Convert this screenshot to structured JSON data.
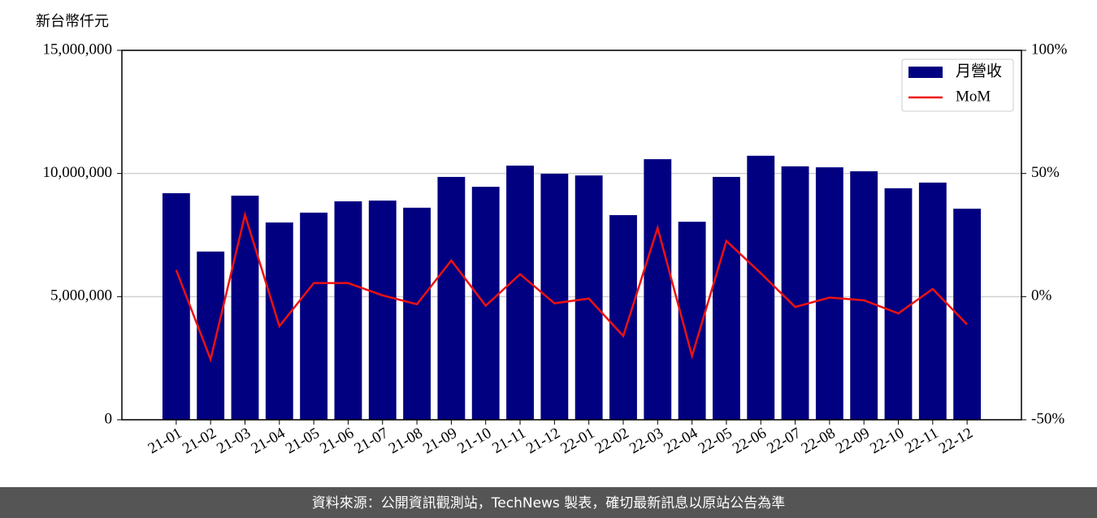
{
  "chart_data": {
    "type": "bar",
    "y_label": "新台幣仟元",
    "categories": [
      "21-01",
      "21-02",
      "21-03",
      "21-04",
      "21-05",
      "21-06",
      "21-07",
      "21-08",
      "21-09",
      "21-10",
      "21-11",
      "21-12",
      "22-01",
      "22-02",
      "22-03",
      "22-04",
      "22-05",
      "22-06",
      "22-07",
      "22-08",
      "22-09",
      "22-10",
      "22-11",
      "22-12"
    ],
    "series": [
      {
        "name": "月營收",
        "type": "bar",
        "color": "#000080",
        "values": [
          9200000,
          6830000,
          9100000,
          8010000,
          8410000,
          8870000,
          8900000,
          8610000,
          9860000,
          9460000,
          10320000,
          9990000,
          9920000,
          8310000,
          10580000,
          8040000,
          9860000,
          10720000,
          10290000,
          10250000,
          10090000,
          9400000,
          9630000,
          8570000
        ]
      },
      {
        "name": "MoM",
        "type": "line",
        "axis": "y2",
        "color": "#ee1111",
        "values": [
          10.8,
          -25.5,
          33.2,
          -12,
          5.5,
          5.5,
          0.5,
          -3.1,
          14.7,
          -3.7,
          9.1,
          -2.7,
          -0.8,
          -16,
          27.9,
          -24.1,
          22.6,
          9.5,
          -4.2,
          -0.4,
          -1.5,
          -6.8,
          3.1,
          -11.3
        ]
      }
    ],
    "ylim": [
      0,
      15000000
    ],
    "yticks": [
      0,
      {
        "value": 5000000,
        "label": "5,000,000"
      },
      {
        "value": 10000000,
        "label": "10,000,000"
      },
      {
        "value": 15000000,
        "label": "15,000,000"
      }
    ],
    "y2lim": [
      -50,
      100
    ],
    "y2ticks": [
      {
        "value": -50,
        "label": "-50%"
      },
      {
        "value": 0,
        "label": "0%"
      },
      {
        "value": 50,
        "label": "50%"
      },
      {
        "value": 100,
        "label": "100%"
      }
    ],
    "grid": true,
    "legend": "upper right",
    "source": "資料來源：公開資訊觀測站，TechNews 製表，確切最新訊息以原站公告為準"
  }
}
